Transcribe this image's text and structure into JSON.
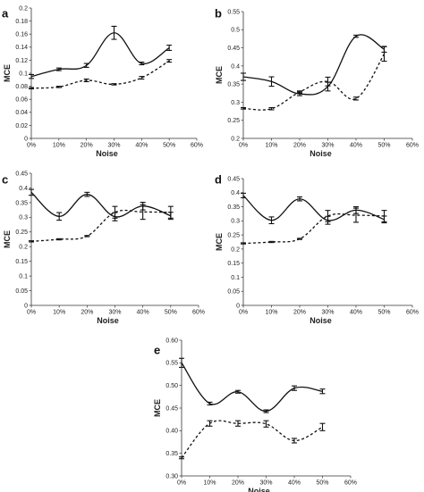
{
  "chart_data": [
    {
      "panel": "a",
      "type": "line",
      "x_ticks": [
        "0%",
        "10%",
        "20%",
        "30%",
        "40%",
        "50%",
        "60%"
      ],
      "xlabel": "Noise",
      "ylabel": "MCE",
      "ylim": [
        0,
        0.2
      ],
      "y_step": 0.02,
      "y_decimals": 0,
      "y_ticks": [
        "0",
        "0.02",
        "0.04",
        "0.06",
        "0.08",
        "0.1",
        "0.12",
        "0.14",
        "0.16",
        "0.18",
        "0.2"
      ],
      "x": [
        0,
        10,
        20,
        30,
        40,
        50
      ],
      "series": [
        {
          "style": "solid",
          "values": [
            0.095,
            0.106,
            0.112,
            0.162,
            0.115,
            0.139
          ],
          "errors": [
            0.003,
            0.002,
            0.003,
            0.01,
            0.002,
            0.004
          ]
        },
        {
          "style": "dotted",
          "values": [
            0.077,
            0.079,
            0.089,
            0.083,
            0.093,
            0.119
          ],
          "errors": [
            0.001,
            0.001,
            0.002,
            0.001,
            0.002,
            0.002
          ]
        }
      ]
    },
    {
      "panel": "b",
      "type": "line",
      "x_ticks": [
        "0%",
        "10%",
        "20%",
        "30%",
        "40%",
        "50%",
        "60%"
      ],
      "xlabel": "Noise",
      "ylabel": "MCE",
      "ylim": [
        0.2,
        0.55
      ],
      "y_ticks": [
        "0.2",
        "0.25",
        "0.3",
        "0.35",
        "0.4",
        "0.45",
        "0.5",
        "0.55"
      ],
      "x": [
        0,
        10,
        20,
        30,
        40,
        50
      ],
      "series": [
        {
          "style": "solid",
          "values": [
            0.37,
            0.357,
            0.323,
            0.343,
            0.482,
            0.446
          ],
          "errors": [
            0.01,
            0.013,
            0.005,
            0.012,
            0.003,
            0.008
          ]
        },
        {
          "style": "dotted",
          "values": [
            0.283,
            0.282,
            0.328,
            0.357,
            0.31,
            0.433
          ],
          "errors": [
            0.002,
            0.003,
            0.003,
            0.012,
            0.004,
            0.02
          ]
        }
      ]
    },
    {
      "panel": "c",
      "type": "line",
      "x_ticks": [
        "0%",
        "10%",
        "20%",
        "30%",
        "40%",
        "50%",
        "60%"
      ],
      "xlabel": "Noise",
      "ylabel": "MCE",
      "ylim": [
        0,
        0.45
      ],
      "y_ticks": [
        "0",
        "0.05",
        "0.1",
        "0.15",
        "0.2",
        "0.25",
        "0.3",
        "0.35",
        "0.4",
        "0.45"
      ],
      "x": [
        0,
        10,
        20,
        30,
        40,
        50
      ],
      "series": [
        {
          "style": "solid",
          "values": [
            0.385,
            0.303,
            0.378,
            0.302,
            0.338,
            0.305
          ],
          "errors": [
            0.01,
            0.013,
            0.007,
            0.014,
            0.013,
            0.012
          ]
        },
        {
          "style": "dotted",
          "values": [
            0.218,
            0.225,
            0.236,
            0.317,
            0.318,
            0.317
          ],
          "errors": [
            0.002,
            0.002,
            0.002,
            0.02,
            0.025,
            0.02
          ]
        }
      ]
    },
    {
      "panel": "d",
      "type": "line",
      "x_ticks": [
        "0%",
        "10%",
        "20%",
        "30%",
        "40%",
        "50%",
        "60%"
      ],
      "xlabel": "Noise",
      "ylabel": "MCE",
      "ylim": [
        0,
        0.45
      ],
      "y_ticks": [
        "0",
        "0.05",
        "0.1",
        "0.15",
        "0.2",
        "0.25",
        "0.3",
        "0.35",
        "0.4",
        "0.45"
      ],
      "x": [
        0,
        10,
        20,
        30,
        40,
        50
      ],
      "series": [
        {
          "style": "solid",
          "values": [
            0.39,
            0.302,
            0.378,
            0.302,
            0.338,
            0.305
          ],
          "errors": [
            0.008,
            0.012,
            0.007,
            0.014,
            0.012,
            0.012
          ]
        },
        {
          "style": "dotted",
          "values": [
            0.22,
            0.225,
            0.236,
            0.317,
            0.32,
            0.317
          ],
          "errors": [
            0.002,
            0.002,
            0.002,
            0.02,
            0.025,
            0.02
          ]
        }
      ]
    },
    {
      "panel": "e",
      "type": "line",
      "x_ticks": [
        "0%",
        "10%",
        "20%",
        "30%",
        "40%",
        "50%",
        "60%"
      ],
      "xlabel": "Noise",
      "ylabel": "MCE",
      "ylim": [
        0.3,
        0.6
      ],
      "y_ticks": [
        "0.30",
        "0.35",
        "0.40",
        "0.45",
        "0.50",
        "0.55",
        "0.60"
      ],
      "x": [
        0,
        10,
        20,
        30,
        40,
        50
      ],
      "series": [
        {
          "style": "solid",
          "values": [
            0.55,
            0.46,
            0.486,
            0.443,
            0.494,
            0.487
          ],
          "errors": [
            0.01,
            0.003,
            0.003,
            0.003,
            0.005,
            0.005
          ]
        },
        {
          "style": "dotted",
          "values": [
            0.34,
            0.416,
            0.416,
            0.415,
            0.378,
            0.408
          ],
          "errors": [
            0.002,
            0.006,
            0.006,
            0.007,
            0.005,
            0.008
          ]
        }
      ]
    }
  ]
}
